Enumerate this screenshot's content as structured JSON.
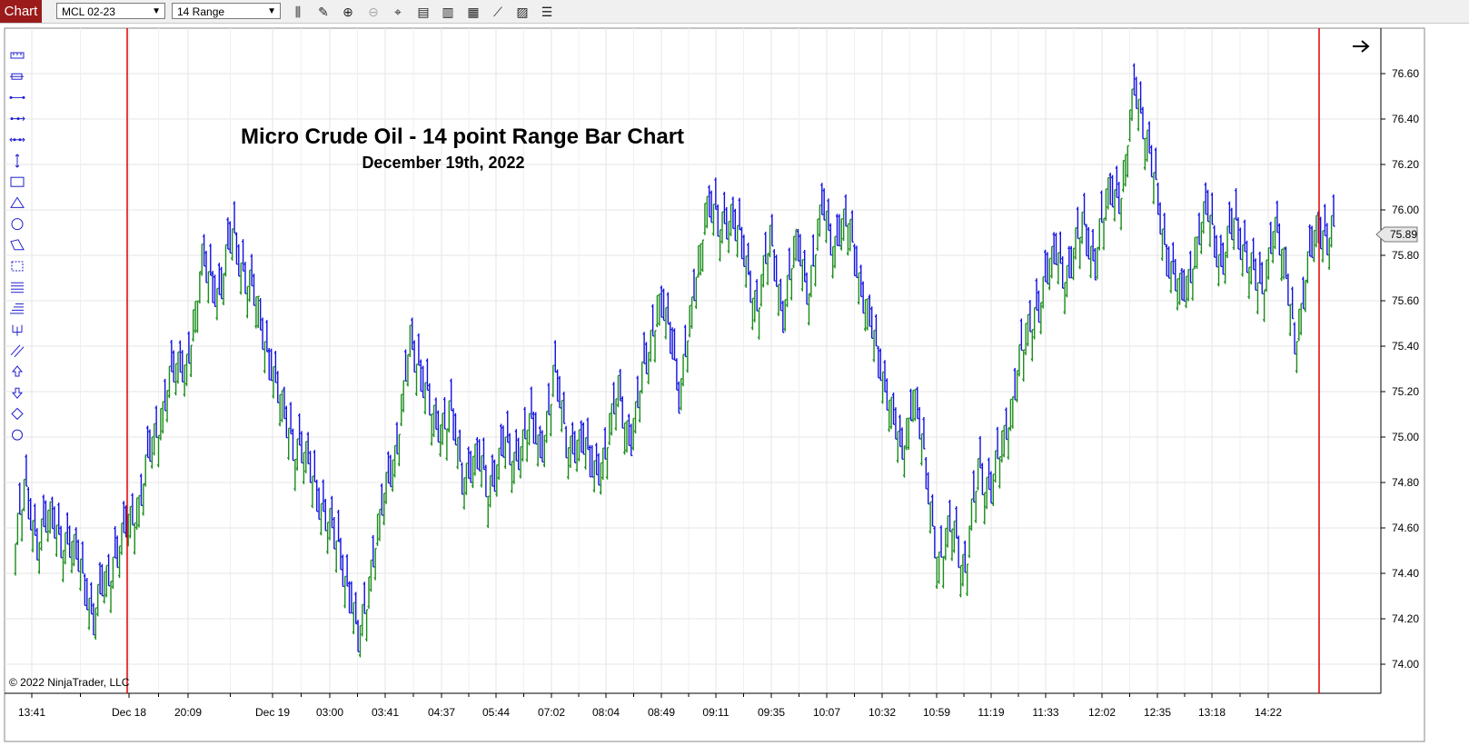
{
  "toolbar": {
    "chart_tab": "Chart",
    "instrument": "MCL 02-23",
    "bar_type": "14 Range",
    "icons": [
      "bar-settings-icon",
      "pencil-icon",
      "zoom-in-icon",
      "zoom-out-icon",
      "crosshair-icon",
      "data-box-icon",
      "chart-style-icon",
      "indicators-icon",
      "strategies-icon",
      "properties-icon",
      "list-icon"
    ]
  },
  "drawing_tools": [
    "ruler-icon",
    "risk-reward-icon",
    "line-icon",
    "ray-icon",
    "extended-line-icon",
    "arrow-line-icon",
    "rectangle-icon",
    "triangle-icon",
    "ellipse-icon",
    "polygon-icon",
    "region-icon",
    "horizontal-lines-icon",
    "fibonacci-icon",
    "andrews-pitchfork-icon",
    "trend-channel-icon",
    "arrow-up-icon",
    "arrow-down-icon",
    "diamond-icon",
    "circle-icon"
  ],
  "chart_data": {
    "type": "range-bar",
    "title": "Micro Crude Oil - 14 point Range Bar Chart",
    "subtitle": "December 19th, 2022",
    "instrument": "MCL 02-23",
    "ylim": [
      73.9,
      76.75
    ],
    "yticks": [
      "76.60",
      "76.40",
      "76.20",
      "76.00",
      "75.80",
      "75.60",
      "75.40",
      "75.20",
      "75.00",
      "74.80",
      "74.60",
      "74.40",
      "74.20",
      "74.00"
    ],
    "xticks": [
      "13:41",
      "Dec 18",
      "20:09",
      "Dec 19",
      "03:00",
      "03:41",
      "04:37",
      "05:44",
      "07:02",
      "08:04",
      "08:49",
      "09:11",
      "09:35",
      "10:07",
      "10:32",
      "10:59",
      "11:19",
      "11:33",
      "12:02",
      "12:35",
      "13:18",
      "14:22"
    ],
    "last_price": "75.89",
    "copyright": "© 2022 NinjaTrader, LLC",
    "grid": true,
    "up_color": "#1a8c1a",
    "down_color": "#1010e0",
    "session_line_color": "#e00000",
    "price_path": [
      {
        "i": 0,
        "p": 74.53
      },
      {
        "i": 4,
        "p": 74.75
      },
      {
        "i": 10,
        "p": 74.55
      },
      {
        "i": 16,
        "p": 74.63
      },
      {
        "i": 22,
        "p": 74.55
      },
      {
        "i": 30,
        "p": 74.43
      },
      {
        "i": 36,
        "p": 74.18
      },
      {
        "i": 42,
        "p": 74.4
      },
      {
        "i": 50,
        "p": 74.55
      },
      {
        "i": 58,
        "p": 74.78
      },
      {
        "i": 64,
        "p": 74.98
      },
      {
        "i": 70,
        "p": 75.25
      },
      {
        "i": 78,
        "p": 75.3
      },
      {
        "i": 86,
        "p": 75.75
      },
      {
        "i": 94,
        "p": 75.62
      },
      {
        "i": 100,
        "p": 75.88
      },
      {
        "i": 106,
        "p": 75.7
      },
      {
        "i": 112,
        "p": 75.55
      },
      {
        "i": 120,
        "p": 75.2
      },
      {
        "i": 128,
        "p": 74.98
      },
      {
        "i": 136,
        "p": 74.85
      },
      {
        "i": 142,
        "p": 74.65
      },
      {
        "i": 150,
        "p": 74.48
      },
      {
        "i": 158,
        "p": 74.08
      },
      {
        "i": 164,
        "p": 74.45
      },
      {
        "i": 170,
        "p": 74.72
      },
      {
        "i": 176,
        "p": 75.0
      },
      {
        "i": 182,
        "p": 75.4
      },
      {
        "i": 188,
        "p": 75.25
      },
      {
        "i": 194,
        "p": 75.0
      },
      {
        "i": 200,
        "p": 75.15
      },
      {
        "i": 206,
        "p": 74.78
      },
      {
        "i": 212,
        "p": 74.95
      },
      {
        "i": 218,
        "p": 74.72
      },
      {
        "i": 224,
        "p": 74.98
      },
      {
        "i": 230,
        "p": 74.85
      },
      {
        "i": 236,
        "p": 75.1
      },
      {
        "i": 242,
        "p": 74.88
      },
      {
        "i": 248,
        "p": 75.3
      },
      {
        "i": 254,
        "p": 74.95
      },
      {
        "i": 260,
        "p": 75.0
      },
      {
        "i": 266,
        "p": 74.82
      },
      {
        "i": 272,
        "p": 74.95
      },
      {
        "i": 278,
        "p": 75.2
      },
      {
        "i": 284,
        "p": 74.98
      },
      {
        "i": 290,
        "p": 75.3
      },
      {
        "i": 296,
        "p": 75.6
      },
      {
        "i": 302,
        "p": 75.42
      },
      {
        "i": 306,
        "p": 75.2
      },
      {
        "i": 312,
        "p": 75.55
      },
      {
        "i": 318,
        "p": 76.05
      },
      {
        "i": 324,
        "p": 75.9
      },
      {
        "i": 330,
        "p": 76.0
      },
      {
        "i": 336,
        "p": 75.75
      },
      {
        "i": 342,
        "p": 75.6
      },
      {
        "i": 348,
        "p": 75.85
      },
      {
        "i": 354,
        "p": 75.55
      },
      {
        "i": 360,
        "p": 75.85
      },
      {
        "i": 366,
        "p": 75.65
      },
      {
        "i": 372,
        "p": 76.0
      },
      {
        "i": 378,
        "p": 75.85
      },
      {
        "i": 384,
        "p": 75.95
      },
      {
        "i": 390,
        "p": 75.65
      },
      {
        "i": 396,
        "p": 75.4
      },
      {
        "i": 402,
        "p": 75.2
      },
      {
        "i": 408,
        "p": 74.9
      },
      {
        "i": 414,
        "p": 75.22
      },
      {
        "i": 420,
        "p": 74.8
      },
      {
        "i": 426,
        "p": 74.45
      },
      {
        "i": 432,
        "p": 74.62
      },
      {
        "i": 438,
        "p": 74.42
      },
      {
        "i": 444,
        "p": 74.85
      },
      {
        "i": 450,
        "p": 74.78
      },
      {
        "i": 456,
        "p": 75.0
      },
      {
        "i": 462,
        "p": 75.3
      },
      {
        "i": 468,
        "p": 75.5
      },
      {
        "i": 474,
        "p": 75.65
      },
      {
        "i": 480,
        "p": 75.8
      },
      {
        "i": 486,
        "p": 75.7
      },
      {
        "i": 492,
        "p": 75.95
      },
      {
        "i": 498,
        "p": 75.75
      },
      {
        "i": 504,
        "p": 76.1
      },
      {
        "i": 510,
        "p": 76.05
      },
      {
        "i": 516,
        "p": 76.55
      },
      {
        "i": 520,
        "p": 76.4
      },
      {
        "i": 526,
        "p": 76.05
      },
      {
        "i": 532,
        "p": 75.75
      },
      {
        "i": 538,
        "p": 75.6
      },
      {
        "i": 544,
        "p": 75.85
      },
      {
        "i": 550,
        "p": 75.98
      },
      {
        "i": 556,
        "p": 75.75
      },
      {
        "i": 562,
        "p": 75.92
      },
      {
        "i": 568,
        "p": 75.8
      },
      {
        "i": 574,
        "p": 75.6
      },
      {
        "i": 580,
        "p": 75.95
      },
      {
        "i": 586,
        "p": 75.7
      },
      {
        "i": 590,
        "p": 75.45
      },
      {
        "i": 594,
        "p": 75.6
      },
      {
        "i": 600,
        "p": 75.95
      },
      {
        "i": 605,
        "p": 75.85
      },
      {
        "i": 608,
        "p": 75.89
      }
    ]
  }
}
